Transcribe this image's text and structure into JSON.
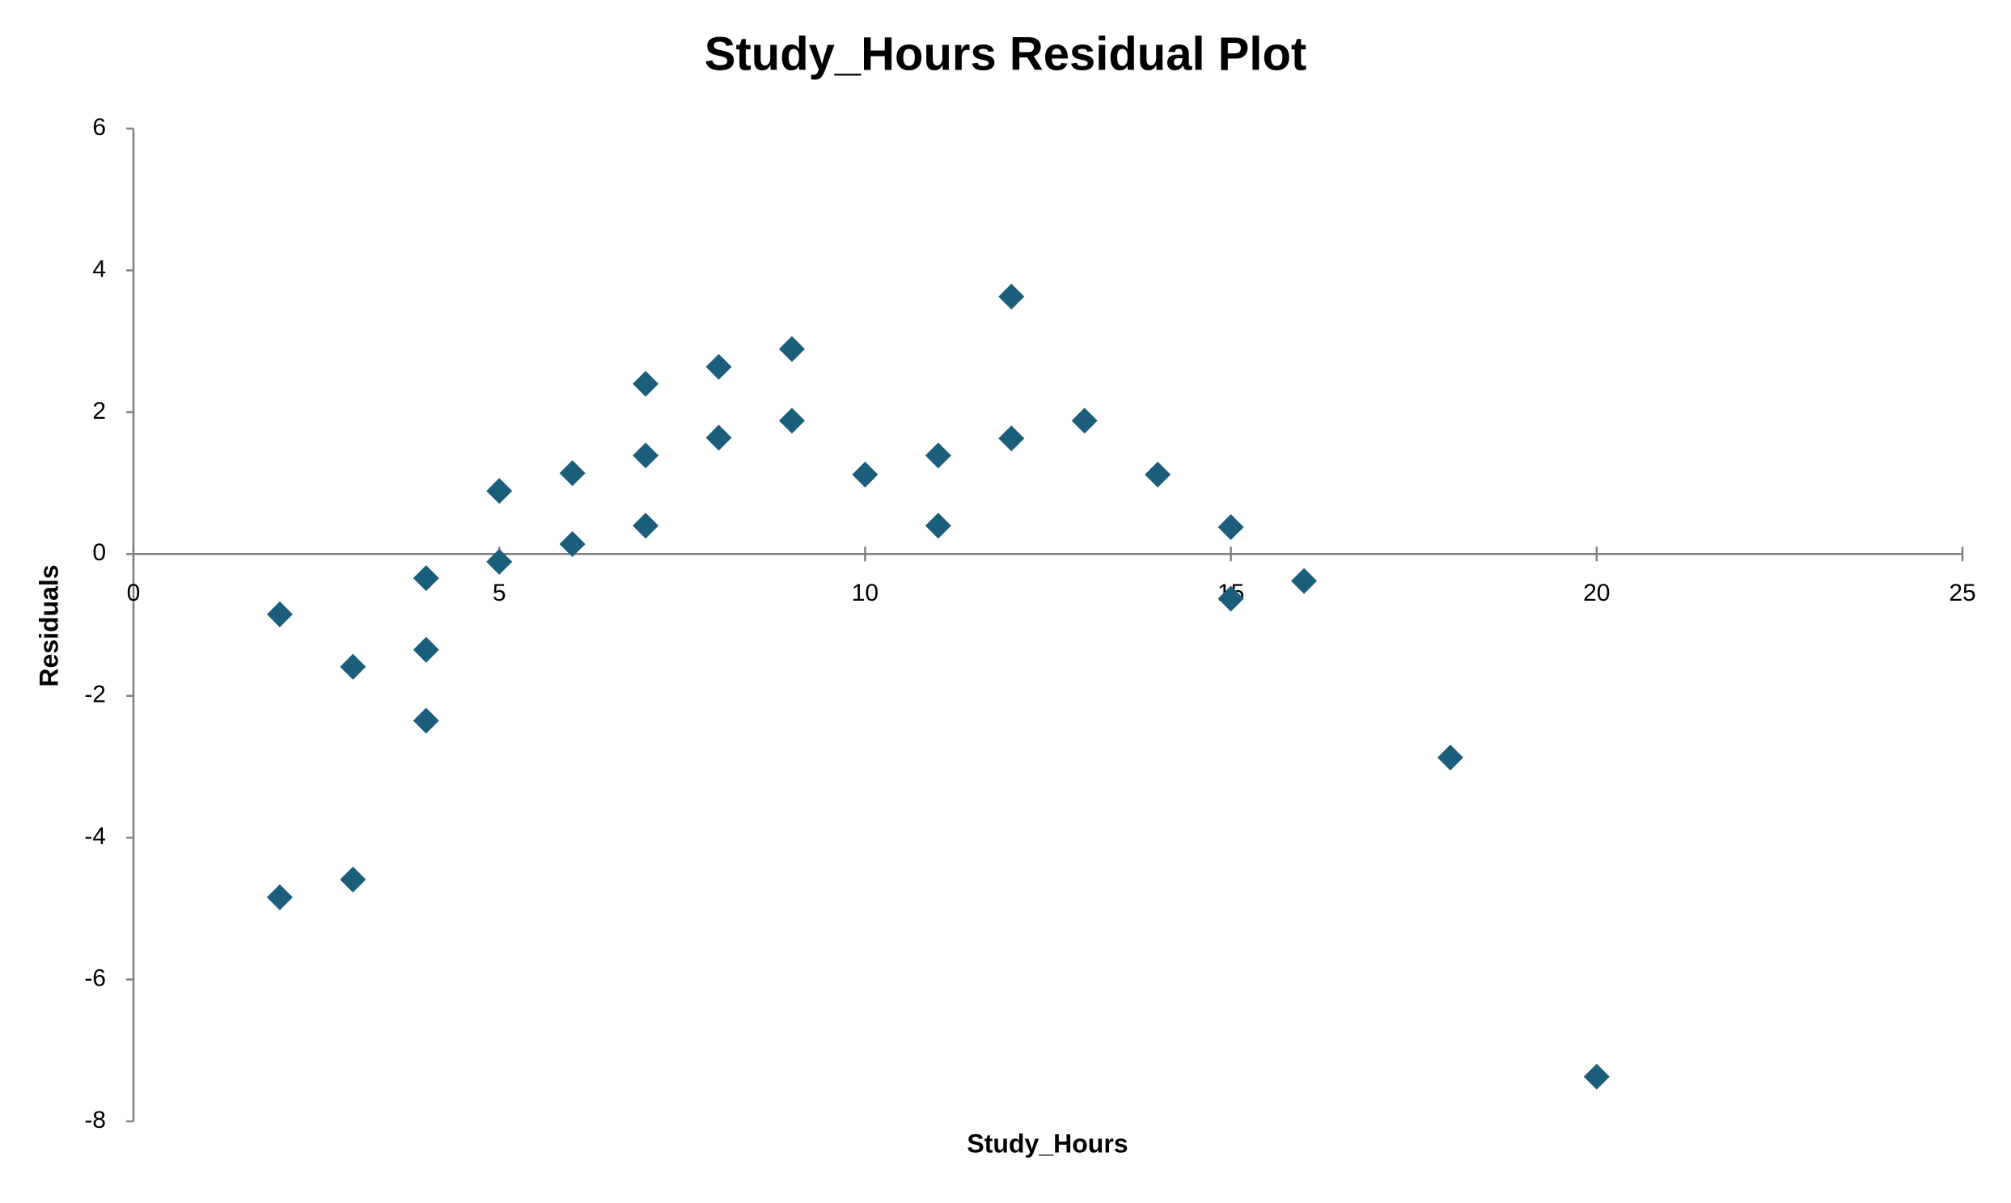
{
  "chart_data": {
    "type": "scatter",
    "title": "Study_Hours  Residual Plot",
    "x_label": "Study_Hours",
    "y_label": "Residuals",
    "x": [
      2,
      2,
      3,
      3,
      4,
      4,
      4,
      5,
      5,
      6,
      6,
      7,
      7,
      7,
      8,
      8,
      9,
      9,
      10,
      11,
      11,
      12,
      12,
      13,
      14,
      15,
      15,
      16,
      18,
      20
    ],
    "y": [
      -0.85,
      -4.84,
      -1.59,
      -4.59,
      -0.34,
      -1.35,
      -2.35,
      0.89,
      -0.11,
      1.14,
      0.14,
      2.4,
      1.39,
      0.4,
      2.64,
      1.64,
      2.89,
      1.88,
      1.12,
      1.39,
      0.4,
      3.63,
      1.63,
      1.88,
      1.12,
      0.38,
      -0.63,
      -0.38,
      -2.87,
      -7.37
    ],
    "xlim": [
      0,
      25
    ],
    "ylim": [
      -8,
      6
    ],
    "xticks": [
      0,
      5,
      10,
      15,
      20,
      25
    ],
    "yticks": [
      -8,
      -6,
      -4,
      -2,
      0,
      2,
      4,
      6
    ],
    "color": "#1b5e7b",
    "marker": "diamond"
  }
}
